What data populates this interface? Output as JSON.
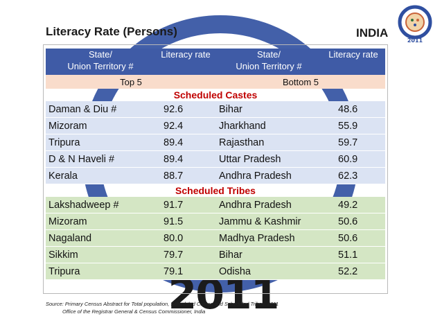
{
  "title": "Literacy Rate (Persons)",
  "country": "INDIA",
  "logo": {
    "year": "2011",
    "icon": "census-of-india-logo-icon"
  },
  "watermark_year": "2011",
  "table": {
    "headers": {
      "state_line1": "State/",
      "state_line2": "Union Territory #",
      "literacy": "Literacy rate"
    },
    "top_label": "Top 5",
    "bottom_label": "Bottom 5",
    "sections": [
      {
        "label": "Scheduled Castes",
        "rows": [
          {
            "top_state": "Daman & Diu #",
            "top_rate": "92.6",
            "bottom_state": "Bihar",
            "bottom_rate": "48.6"
          },
          {
            "top_state": "Mizoram",
            "top_rate": "92.4",
            "bottom_state": "Jharkhand",
            "bottom_rate": "55.9"
          },
          {
            "top_state": "Tripura",
            "top_rate": "89.4",
            "bottom_state": "Rajasthan",
            "bottom_rate": "59.7"
          },
          {
            "top_state": "D & N Haveli #",
            "top_rate": "89.4",
            "bottom_state": "Uttar Pradesh",
            "bottom_rate": "60.9"
          },
          {
            "top_state": "Kerala",
            "top_rate": "88.7",
            "bottom_state": "Andhra Pradesh",
            "bottom_rate": "62.3"
          }
        ]
      },
      {
        "label": "Scheduled Tribes",
        "rows": [
          {
            "top_state": "Lakshadweep #",
            "top_rate": "91.7",
            "bottom_state": "Andhra Pradesh",
            "bottom_rate": "49.2"
          },
          {
            "top_state": "Mizoram",
            "top_rate": "91.5",
            "bottom_state": "Jammu & Kashmir",
            "bottom_rate": "50.6"
          },
          {
            "top_state": "Nagaland",
            "top_rate": "80.0",
            "bottom_state": "Madhya Pradesh",
            "bottom_rate": "50.6"
          },
          {
            "top_state": "Sikkim",
            "top_rate": "79.7",
            "bottom_state": "Bihar",
            "bottom_rate": "51.1"
          },
          {
            "top_state": "Tripura",
            "top_rate": "79.1",
            "bottom_state": "Odisha",
            "bottom_rate": "52.2"
          }
        ]
      }
    ]
  },
  "source": {
    "line1": "Source: Primary Census Abstract for Total population, Scheduled Castes and Scheduled Tribes, 2011",
    "line2": "Office of the Registrar General & Census Commissioner, India"
  },
  "colors": {
    "header": "#3f5ba6",
    "subheader": "#f9dccb",
    "sc_rows": "#dbe3f3",
    "st_rows": "#d4e6c4",
    "section_label": "#c00000"
  }
}
